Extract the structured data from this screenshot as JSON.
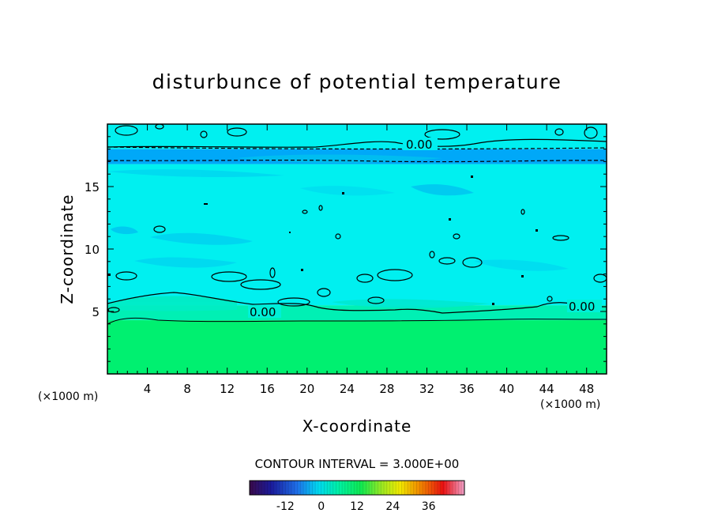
{
  "chart_data": {
    "type": "heatmap",
    "title": "disturbunce of potential temperature",
    "xlabel": "X-coordinate",
    "ylabel": "Z-coordinate",
    "x_unit": "(×1000 m)",
    "xlim": [
      0,
      50
    ],
    "ylim": [
      0,
      20
    ],
    "x_ticks": [
      "4",
      "8",
      "12",
      "16",
      "20",
      "24",
      "28",
      "32",
      "36",
      "40",
      "44",
      "48"
    ],
    "y_ticks": [
      "5",
      "10",
      "15"
    ],
    "contour_labels": [
      "0.00",
      "0.00",
      "0.00"
    ],
    "contour_interval_text": "CONTOUR INTERVAL = 3.000E+00",
    "colorbar": {
      "range": [
        -24,
        48
      ],
      "tick_labels": [
        "-12",
        "0",
        "12",
        "24",
        "36"
      ],
      "colormap": "rainbow (purple-blue-cyan-green-yellow-red-pink)"
    },
    "field_bands": [
      {
        "z_range": [
          0,
          4.3
        ],
        "value": 7.5,
        "color": "#00f070"
      },
      {
        "z_range": [
          4.3,
          5.5
        ],
        "value": 3,
        "color": "#00f0b4"
      },
      {
        "z_range": [
          5.5,
          16.8
        ],
        "value": 0,
        "color": "#00f0f0"
      },
      {
        "z_range": [
          16.8,
          18.0
        ],
        "value": -4.5,
        "color": "#00a8f8"
      },
      {
        "z_range": [
          18.0,
          20
        ],
        "value": 0,
        "color": "#00f0f0"
      }
    ],
    "colors": {
      "contour": "#000000",
      "frame": "#000000"
    }
  }
}
